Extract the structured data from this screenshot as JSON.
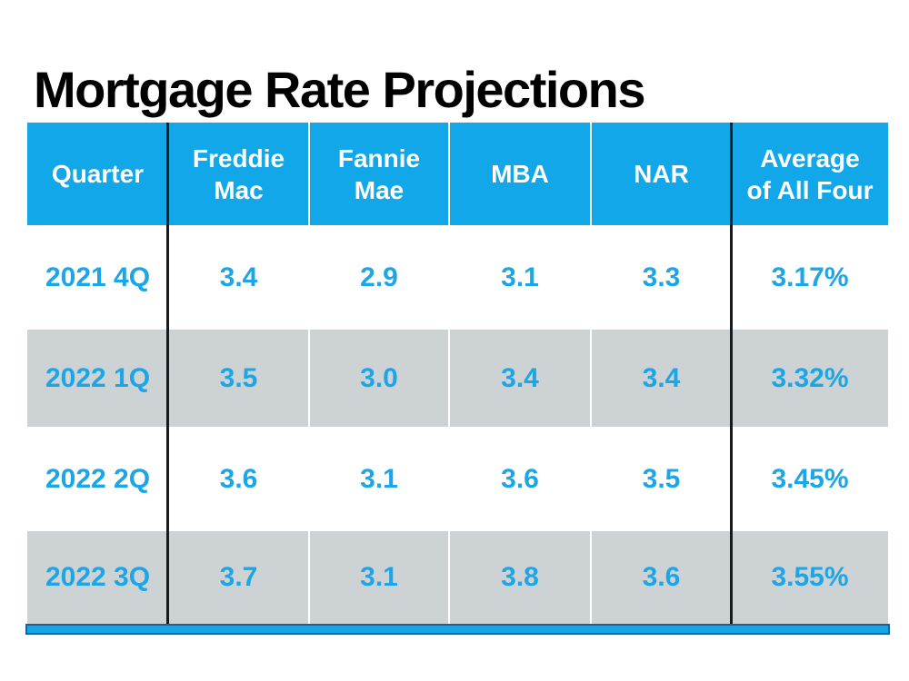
{
  "title": "Mortgage Rate Projections",
  "table": {
    "headers": [
      {
        "label": "Quarter"
      },
      {
        "label": "Freddie\nMac"
      },
      {
        "label": "Fannie\nMae"
      },
      {
        "label": "MBA"
      },
      {
        "label": "NAR"
      },
      {
        "label": "Average\nof All Four"
      }
    ],
    "rows": [
      {
        "cells": [
          "2021 4Q",
          "3.4",
          "2.9",
          "3.1",
          "3.3",
          "3.17%"
        ]
      },
      {
        "cells": [
          "2022 1Q",
          "3.5",
          "3.0",
          "3.4",
          "3.4",
          "3.32%"
        ]
      },
      {
        "cells": [
          "2022 2Q",
          "3.6",
          "3.1",
          "3.6",
          "3.5",
          "3.45%"
        ]
      },
      {
        "cells": [
          "2022 3Q",
          "3.7",
          "3.1",
          "3.8",
          "3.6",
          "3.55%"
        ]
      }
    ]
  },
  "colors": {
    "header_blue": "#12A7E8",
    "value_text_blue": "#1CA6E8",
    "alt_row_gray": "#CDD2D4",
    "divider_black": "#1A1A1A",
    "bottom_bar_fill": "#12A7E8",
    "bottom_bar_border": "#235F91",
    "title_black": "#000000"
  },
  "chart_data": {
    "type": "table",
    "title": "Mortgage Rate Projections",
    "columns": [
      "Quarter",
      "Freddie Mac",
      "Fannie Mae",
      "MBA",
      "NAR",
      "Average of All Four"
    ],
    "rows": [
      [
        "2021 4Q",
        3.4,
        2.9,
        3.1,
        3.3,
        "3.17%"
      ],
      [
        "2022 1Q",
        3.5,
        3.0,
        3.4,
        3.4,
        "3.32%"
      ],
      [
        "2022 2Q",
        3.6,
        3.1,
        3.6,
        3.5,
        "3.45%"
      ],
      [
        "2022 3Q",
        3.7,
        3.1,
        3.8,
        3.6,
        "3.55%"
      ]
    ],
    "series": [
      {
        "name": "Freddie Mac",
        "values": [
          3.4,
          3.5,
          3.6,
          3.7
        ]
      },
      {
        "name": "Fannie Mae",
        "values": [
          2.9,
          3.0,
          3.1,
          3.1
        ]
      },
      {
        "name": "MBA",
        "values": [
          3.1,
          3.4,
          3.6,
          3.8
        ]
      },
      {
        "name": "NAR",
        "values": [
          3.3,
          3.4,
          3.5,
          3.6
        ]
      },
      {
        "name": "Average of All Four",
        "values": [
          3.17,
          3.32,
          3.45,
          3.55
        ]
      }
    ],
    "categories": [
      "2021 4Q",
      "2022 1Q",
      "2022 2Q",
      "2022 3Q"
    ]
  }
}
